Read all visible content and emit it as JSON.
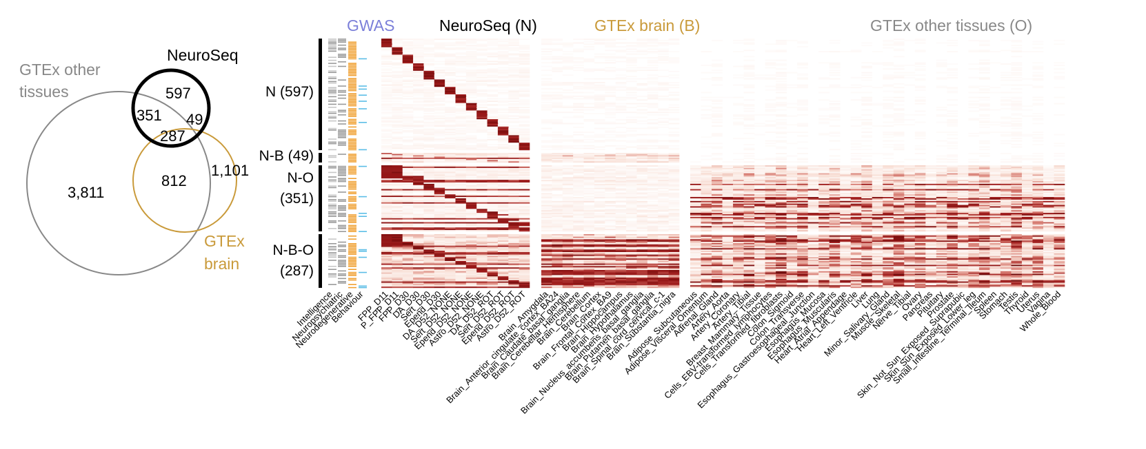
{
  "colors": {
    "neuroseq": "#000000",
    "gtex_brain": "#c99a3a",
    "gtex_other": "#888888",
    "gwas": "#7b7fd9",
    "heat_low": "#ffffff",
    "heat_high": "#9e1a1a",
    "gwas_grey": "#9a9a9a",
    "gwas_orange": "#f0a030",
    "gwas_blue": "#5bbde6"
  },
  "venn": {
    "label_neuroseq": "NeuroSeq",
    "label_gtex_other_1": "GTEx other",
    "label_gtex_other_2": "tissues",
    "label_gtex_brain_1": "GTEx",
    "label_gtex_brain_2": "brain",
    "n_only": "597",
    "n_o": "351",
    "n_b": "49",
    "n_b_o": "287",
    "b_o": "812",
    "b_only": "1,101",
    "o_only": "3,811"
  },
  "panels": {
    "gwas_title": "GWAS",
    "neuroseq_title": "NeuroSeq (N)",
    "brain_title": "GTEx brain (B)",
    "other_title": "GTEx other tissues (O)"
  },
  "groups": [
    {
      "label": [
        "N (597)"
      ],
      "count": 597
    },
    {
      "label": [
        "N-B (49)"
      ],
      "count": 49
    },
    {
      "label": [
        "N-O",
        "(351)"
      ],
      "count": 351
    },
    {
      "label": [
        "N-B-O",
        "(287)"
      ],
      "count": 287
    }
  ],
  "chart_data": {
    "type": "heatmap",
    "gwas_columns": [
      "Intelligence",
      "Neuropsychiatric",
      "Neurodegenerative",
      "Behaviour"
    ],
    "neuroseq_columns": [
      "FPP_D11",
      "P_FPP_D11",
      "FPP_D30",
      "DA_D30",
      "Sert_D30",
      "Epend_D30",
      "DA_D52_NONE",
      "Sert_D52_NONE",
      "Epend_D52_NONE",
      "Astro_D52_NONE",
      "DA_D52_ROT",
      "Sert_D52_ROT",
      "Epend_D52_ROT",
      "Astro_D52_ROT"
    ],
    "brain_columns": [
      "Brain_Amygdala",
      "Brain_Anterior_cingulate_cortex_BA24",
      "Brain_Caudate_basal_ganglia",
      "Brain_Cerebellar_Hemisphere",
      "Brain_Cerebellum",
      "Brain_Cortex",
      "Brain_Frontal_Cortex_BA9",
      "Brain_Hippocampus",
      "Brain_Hypothalamus",
      "Brain_Nucleus_accumbens_basal_ganglia",
      "Brain_Putamen_basal_ganglia",
      "Brain_Spinal_cord_cervical_c-1",
      "Brain_Substantia_nigra"
    ],
    "other_columns": [
      "Adipose_Subcutaneous",
      "Adipose_Visceral_Omentum",
      "Adrenal_Gland",
      "Artery_Aorta",
      "Artery_Coronary",
      "Artery_Tibial",
      "Breast_Mammary_Tissue",
      "Cells_EBV-transformed_lymphocytes",
      "Cells_Transformed_fibroblasts",
      "Colon_Sigmoid",
      "Colon_Transverse",
      "Esophagus_Gastroesophageal_Junction",
      "Esophagus_Mucosa",
      "Esophagus_Muscularis",
      "Heart_Atrial_Appendage",
      "Heart_Left_Ventricle",
      "Liver",
      "Lung",
      "Minor_Salivary_Gland",
      "Muscle_Skeletal",
      "Nerve_Tibial",
      "Ovary",
      "Pancreas",
      "Pituitary",
      "Prostate",
      "Skin_Not_Sun_Exposed_Suprapubic",
      "Skin_Sun_Exposed_Lower_leg",
      "Small_Intestine_Terminal_Ileum",
      "Spleen",
      "Stomach",
      "Testis",
      "Thyroid",
      "Uterus",
      "Vagina",
      "Whole_Blood"
    ],
    "row_groups": [
      "N (597)",
      "N-B (49)",
      "N-O (351)",
      "N-B-O (287)"
    ],
    "row_counts": [
      597,
      49,
      351,
      287
    ],
    "group_intensity": {
      "neuroseq_diagonal": [
        0.85,
        0.6,
        0.85,
        0.9
      ],
      "neuroseq_background": [
        0.06,
        0.2,
        0.12,
        0.3
      ],
      "brain": [
        0.05,
        0.35,
        0.12,
        0.55
      ],
      "other": [
        0.03,
        0.04,
        0.35,
        0.55
      ]
    }
  }
}
